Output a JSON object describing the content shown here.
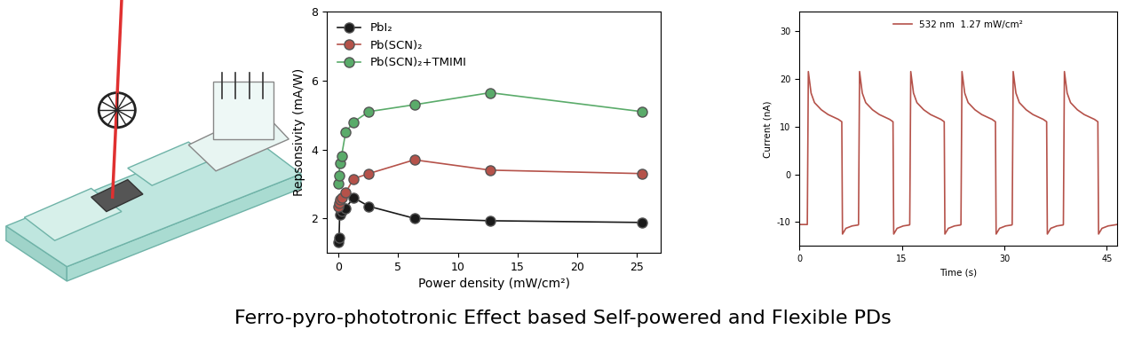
{
  "caption": "Ferro-pyro-phototronic Effect based Self-powered and Flexible PDs",
  "chart_data": [
    {
      "type": "line",
      "x_label": "Power density (mW/cm²)",
      "y_label": "Repsonsivity (mA/W)",
      "x": [
        0.01,
        0.05,
        0.1,
        0.25,
        0.6,
        1.27,
        2.54,
        6.35,
        12.7,
        25.4
      ],
      "series": [
        {
          "name": "PbI₂",
          "color": "#1a1a1a",
          "marker": "o",
          "line_style": "solid",
          "values": [
            1.3,
            1.45,
            2.1,
            2.2,
            2.3,
            2.6,
            2.35,
            2.0,
            1.93,
            1.88
          ]
        },
        {
          "name": "Pb(SCN)₂",
          "color": "#b5524a",
          "marker": "o",
          "line_style": "solid",
          "values": [
            2.35,
            2.45,
            2.55,
            2.6,
            2.75,
            3.15,
            3.3,
            3.7,
            3.4,
            3.3
          ]
        },
        {
          "name": "Pb(SCN)₂+TMIMI",
          "color": "#5aab6a",
          "marker": "o",
          "line_style": "solid",
          "values": [
            3.0,
            3.25,
            3.6,
            3.8,
            4.5,
            4.8,
            5.1,
            5.3,
            5.65,
            5.1
          ]
        }
      ],
      "xlim": [
        -1,
        27
      ],
      "xticks": [
        0,
        5,
        10,
        15,
        20,
        25
      ],
      "ylim": [
        1,
        8
      ],
      "yticks": [
        2,
        4,
        6,
        8
      ],
      "legend": "upper left",
      "grid": false
    },
    {
      "type": "line",
      "x_label": "Time (s)",
      "y_label": "Current (nA)",
      "x": [
        0,
        1.15,
        1.3,
        1.7,
        2.2,
        3.2,
        4.2,
        5.7,
        6.2,
        6.3,
        6.8,
        7.7,
        8.6,
        8.65,
        8.8,
        9.2,
        9.7,
        10.7,
        11.7,
        13.2,
        13.7,
        13.8,
        14.3,
        15.2,
        16.1,
        16.15,
        16.3,
        16.7,
        17.2,
        18.2,
        19.2,
        20.7,
        21.2,
        21.3,
        21.8,
        22.7,
        23.6,
        23.65,
        23.8,
        24.2,
        24.7,
        25.7,
        26.7,
        28.2,
        28.7,
        28.8,
        29.3,
        30.2,
        31.1,
        31.15,
        31.3,
        31.7,
        32.2,
        33.2,
        34.2,
        35.7,
        36.2,
        36.3,
        36.8,
        37.7,
        38.6,
        38.65,
        38.8,
        39.2,
        39.7,
        40.7,
        41.7,
        43.2,
        43.7,
        43.8,
        44.3,
        45.2,
        46.1,
        46.5
      ],
      "series": [
        {
          "name": "532 nm  1.27 mW/cm²",
          "color": "#b5524a",
          "line_style": "solid",
          "values": [
            -10.5,
            -10.5,
            21.5,
            17,
            15,
            13.5,
            12.5,
            11.5,
            11,
            -12.5,
            -11.3,
            -10.8,
            -10.6,
            -10.5,
            21.5,
            17,
            15,
            13.5,
            12.5,
            11.5,
            11,
            -12.5,
            -11.3,
            -10.8,
            -10.6,
            -10.5,
            21.5,
            17,
            15,
            13.5,
            12.5,
            11.5,
            11,
            -12.5,
            -11.3,
            -10.8,
            -10.6,
            -10.5,
            21.5,
            17,
            15,
            13.5,
            12.5,
            11.5,
            11,
            -12.5,
            -11.3,
            -10.8,
            -10.6,
            -10.5,
            21.5,
            17,
            15,
            13.5,
            12.5,
            11.5,
            11,
            -12.5,
            -11.3,
            -10.8,
            -10.6,
            -10.5,
            21.5,
            17,
            15,
            13.5,
            12.5,
            11.5,
            11,
            -12.5,
            -11.3,
            -10.8,
            -10.6,
            -10.5
          ]
        }
      ],
      "xlim": [
        0,
        46.5
      ],
      "xticks": [
        0,
        15,
        30,
        45
      ],
      "ylim": [
        -15,
        34
      ],
      "yticks": [
        -10,
        0,
        10,
        20,
        30
      ],
      "legend": "upper center",
      "grid": false
    }
  ]
}
